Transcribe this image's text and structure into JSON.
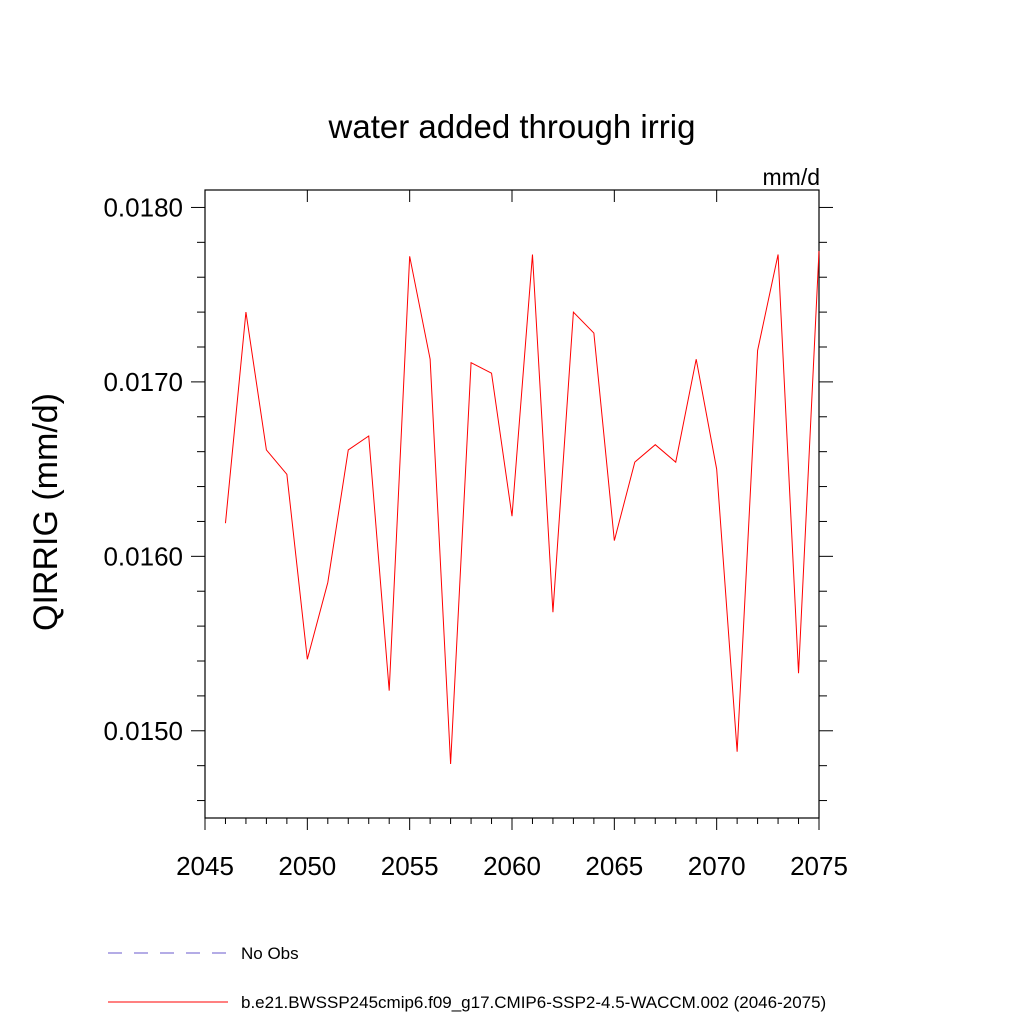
{
  "chart_data": {
    "type": "line",
    "title": "water added through irrig",
    "units_label": "mm/d",
    "xlabel": "",
    "ylabel": "QIRRIG  (mm/d)",
    "xlim": [
      2045,
      2075
    ],
    "ylim": [
      0.0145,
      0.0181
    ],
    "x_ticks": [
      2045,
      2050,
      2055,
      2060,
      2065,
      2070,
      2075
    ],
    "x_tick_labels": [
      "2045",
      "2050",
      "2055",
      "2060",
      "2065",
      "2070",
      "2075"
    ],
    "y_ticks": [
      0.015,
      0.016,
      0.017,
      0.018
    ],
    "y_tick_labels": [
      "0.0150",
      "0.0160",
      "0.0170",
      "0.0180"
    ],
    "grid": false,
    "legend_position": "bottom",
    "series": [
      {
        "name": "No Obs",
        "color": "#6a5acd",
        "style": "dashed",
        "x": [],
        "values": []
      },
      {
        "name": "b.e21.BWSSP245cmip6.f09_g17.CMIP6-SSP2-4.5-WACCM.002 (2046-2075)",
        "color": "#ff0000",
        "style": "solid",
        "x": [
          2046,
          2047,
          2048,
          2049,
          2050,
          2051,
          2052,
          2053,
          2054,
          2055,
          2056,
          2057,
          2058,
          2059,
          2060,
          2061,
          2062,
          2063,
          2064,
          2065,
          2066,
          2067,
          2068,
          2069,
          2070,
          2071,
          2072,
          2073,
          2074,
          2075
        ],
        "values": [
          0.01619,
          0.0174,
          0.01661,
          0.01647,
          0.01541,
          0.01585,
          0.01661,
          0.01669,
          0.01523,
          0.01772,
          0.01713,
          0.01481,
          0.01711,
          0.01705,
          0.01623,
          0.01773,
          0.01568,
          0.0174,
          0.01728,
          0.01609,
          0.01654,
          0.01664,
          0.01654,
          0.01713,
          0.0165,
          0.01488,
          0.01718,
          0.01773,
          0.01533,
          0.01775
        ]
      }
    ]
  }
}
